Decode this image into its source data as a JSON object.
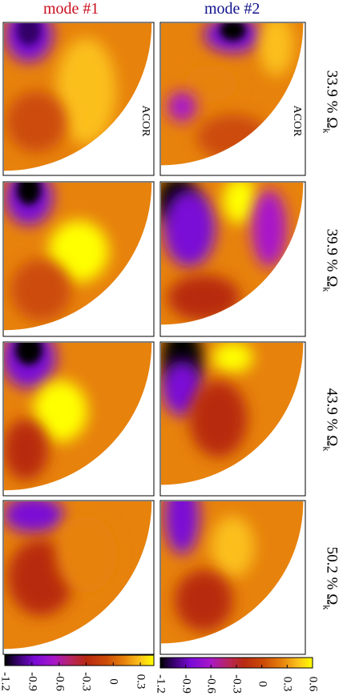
{
  "headers": {
    "mode1": "mode #1",
    "mode2": "mode #2"
  },
  "rows": [
    {
      "label": "33.9 % Ω",
      "sub": "k"
    },
    {
      "label": "39.9 % Ω",
      "sub": "k"
    },
    {
      "label": "43.9 % Ω",
      "sub": "k"
    },
    {
      "label": "50.2 % Ω",
      "sub": "k"
    }
  ],
  "annotation": "ACOR",
  "colorbars": [
    {
      "name": "mode1",
      "ticks": [
        "-1.2",
        "-0.9",
        "-0.6",
        "-0.3",
        "0",
        "0.3"
      ],
      "min": -1.2,
      "max": 0.45
    },
    {
      "name": "mode2",
      "ticks": [
        "-1.2",
        "-0.9",
        "-0.6",
        "-0.3",
        "0",
        "0.3",
        "0.6"
      ],
      "min": -1.2,
      "max": 0.6
    }
  ],
  "colormap": [
    "#000000",
    "#330066",
    "#7a0bd6",
    "#a817c9",
    "#c3236f",
    "#b82a10",
    "#cc4c08",
    "#e7820c",
    "#fbbf1c",
    "#ffff00"
  ]
}
